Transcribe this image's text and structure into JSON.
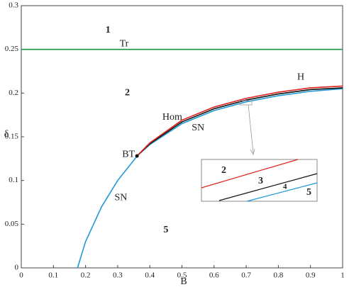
{
  "chart_data": {
    "type": "line",
    "x_label": "B",
    "y_label": "δ",
    "xlim": [
      0,
      1
    ],
    "ylim": [
      0,
      0.3
    ],
    "xticks": [
      0,
      0.1,
      0.2,
      0.3,
      0.4,
      0.5,
      0.6,
      0.7,
      0.8,
      0.9,
      1
    ],
    "yticks": [
      0,
      0.05,
      0.1,
      0.15,
      0.2,
      0.25,
      0.3
    ],
    "series": [
      {
        "name": "Tr",
        "color": "#1a9641",
        "x": [
          0,
          1
        ],
        "values": [
          0.25,
          0.25
        ]
      },
      {
        "name": "SN",
        "color": "#1f9ad6",
        "x": [
          0.175,
          0.2,
          0.25,
          0.3,
          0.35,
          0.36,
          0.4,
          0.5,
          0.6,
          0.7,
          0.8,
          0.9,
          1
        ],
        "values": [
          0,
          0.03,
          0.07,
          0.1,
          0.123,
          0.128,
          0.141,
          0.165,
          0.18,
          0.19,
          0.197,
          0.202,
          0.205
        ]
      },
      {
        "name": "Hom",
        "color": "#111111",
        "x": [
          0.36,
          0.4,
          0.5,
          0.6,
          0.7,
          0.8,
          0.9,
          1
        ],
        "values": [
          0.128,
          0.142,
          0.167,
          0.182,
          0.192,
          0.199,
          0.204,
          0.206
        ]
      },
      {
        "name": "H",
        "color": "#e0201b",
        "x": [
          0.36,
          0.4,
          0.5,
          0.6,
          0.7,
          0.8,
          0.9,
          1
        ],
        "values": [
          0.128,
          0.143,
          0.169,
          0.184,
          0.194,
          0.201,
          0.206,
          0.208
        ]
      }
    ],
    "points": [
      {
        "name": "BT",
        "x": 0.36,
        "y": 0.128
      }
    ],
    "region_labels": [
      "1",
      "2",
      "5"
    ],
    "inset_labels": [
      "2",
      "3",
      "4",
      "5"
    ]
  }
}
